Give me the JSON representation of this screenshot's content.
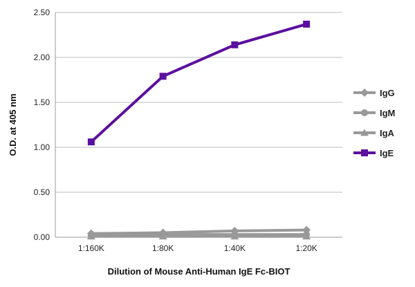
{
  "chart_data": {
    "type": "line",
    "title": "",
    "xlabel": "Dilution of Mouse Anti-Human IgE Fc-BIOT",
    "ylabel": "O.D. at 405 nm",
    "categories": [
      "1:160K",
      "1:80K",
      "1:40K",
      "1:20K"
    ],
    "ylim": [
      0,
      2.5
    ],
    "yticks": [
      "0.00",
      "0.50",
      "1.00",
      "1.50",
      "2.00",
      "2.50"
    ],
    "grid": true,
    "legend_position": "right",
    "series": [
      {
        "name": "IgG",
        "values": [
          0.04,
          0.05,
          0.07,
          0.08
        ],
        "color": "#999999",
        "marker": "diamond"
      },
      {
        "name": "IgM",
        "values": [
          0.02,
          0.03,
          0.03,
          0.03
        ],
        "color": "#999999",
        "marker": "circle"
      },
      {
        "name": "IgA",
        "values": [
          0.01,
          0.01,
          0.01,
          0.01
        ],
        "color": "#999999",
        "marker": "triangle"
      },
      {
        "name": "IgE",
        "values": [
          1.06,
          1.79,
          2.14,
          2.37
        ],
        "color": "#5b0f9e",
        "marker": "square"
      }
    ]
  }
}
